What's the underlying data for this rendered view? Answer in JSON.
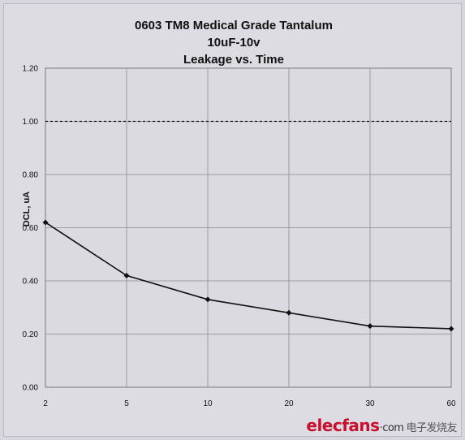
{
  "chart_data": {
    "type": "line",
    "title_lines": [
      "0603 TM8 Medical Grade Tantalum",
      "10uF-10v",
      "Leakage vs. Time"
    ],
    "xlabel": "",
    "ylabel": "DCL, uA",
    "categories": [
      "2",
      "5",
      "10",
      "20",
      "30",
      "60"
    ],
    "series": [
      {
        "values": [
          0.62,
          0.42,
          0.33,
          0.28,
          0.23,
          0.22
        ],
        "color": "#111111"
      }
    ],
    "reference_line": {
      "value": 1.0,
      "style": "dashed",
      "color": "#111111"
    },
    "ylim": [
      0,
      1.2
    ],
    "yticks": [
      "0.00",
      "0.20",
      "0.40",
      "0.60",
      "0.80",
      "1.00",
      "1.20"
    ],
    "grid": true,
    "legend": "none"
  },
  "watermark": {
    "brand": "elecfans",
    "suffix": "·com",
    "cn": "电子发烧友"
  }
}
